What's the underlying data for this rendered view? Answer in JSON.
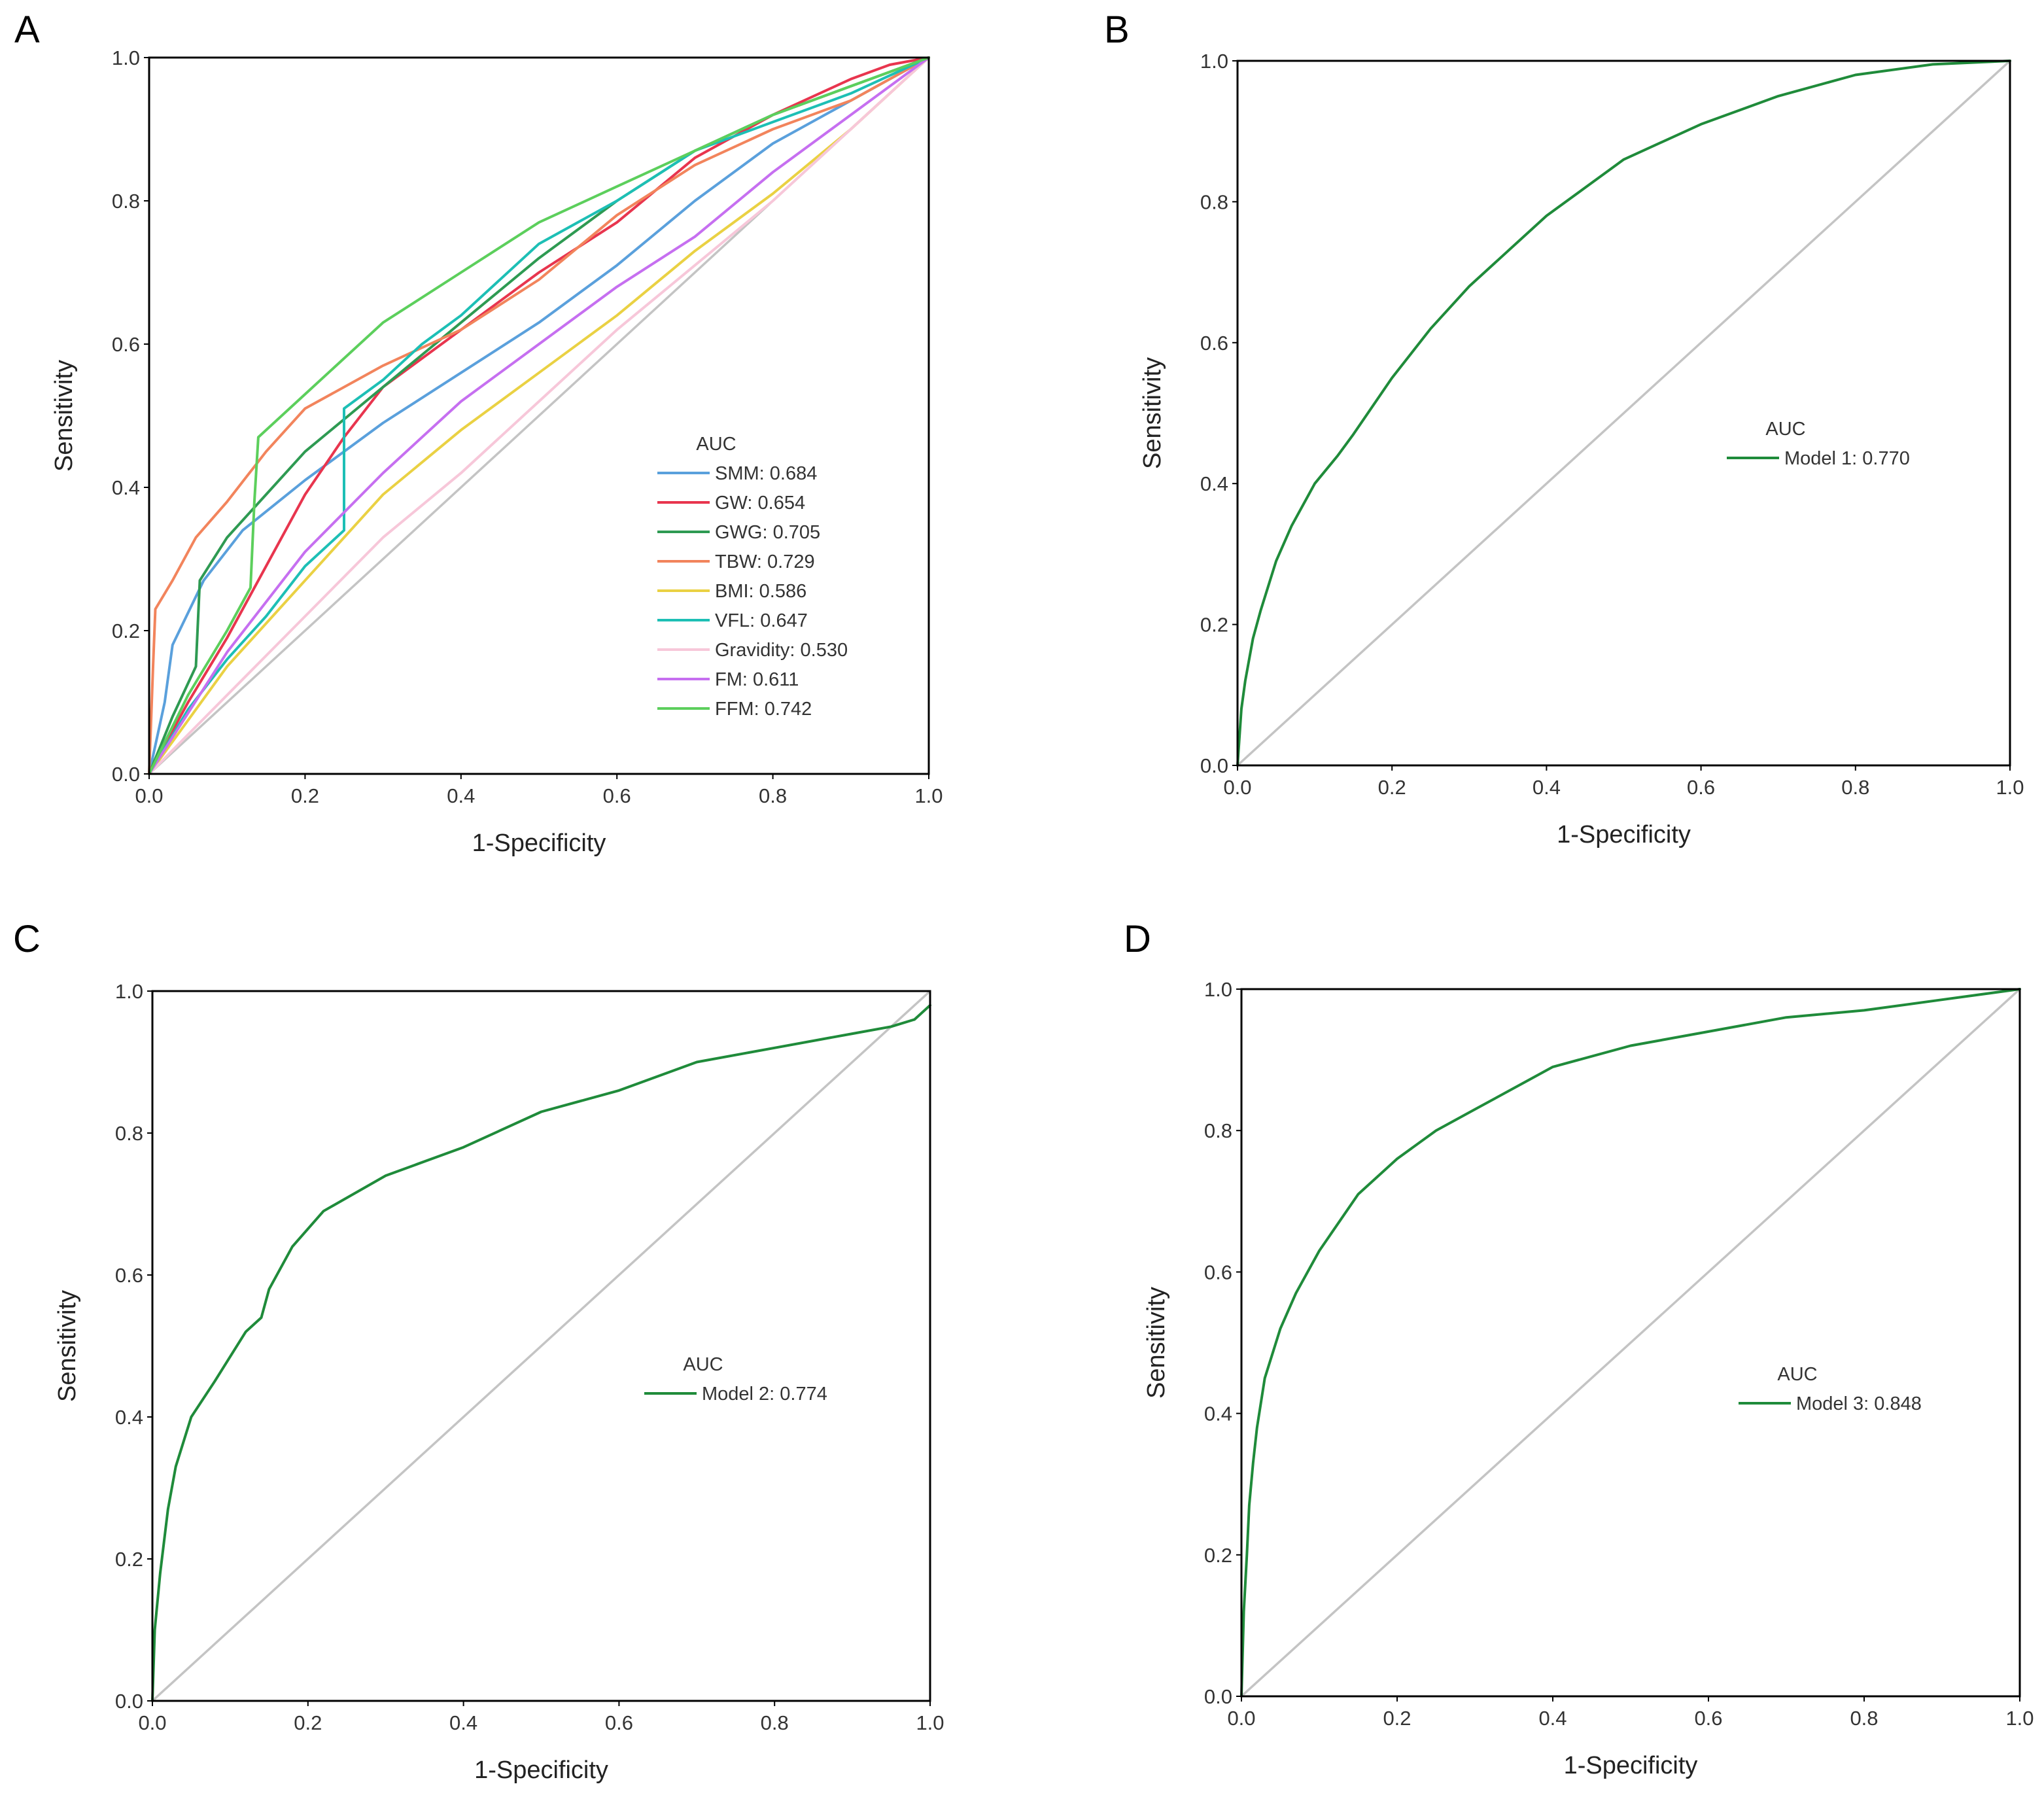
{
  "chart_data": [
    {
      "panel": "A",
      "type": "line",
      "title": "",
      "xlabel": "1-Specificity",
      "ylabel": "Sensitivity",
      "xlim": [
        0,
        1
      ],
      "ylim": [
        0,
        1
      ],
      "xticks": [
        "0.0",
        "0.2",
        "0.4",
        "0.6",
        "0.8",
        "1.0"
      ],
      "yticks": [
        "0.0",
        "0.2",
        "0.4",
        "0.6",
        "0.8",
        "1.0"
      ],
      "legend_title": "AUC",
      "legend_position": "bottom-right",
      "reference_line": true,
      "reference_color": "#bdbdbd",
      "series": [
        {
          "name": "SMM: 0.684",
          "color": "#5aa0dc",
          "x": [
            0,
            0.01,
            0.02,
            0.03,
            0.07,
            0.12,
            0.2,
            0.3,
            0.4,
            0.5,
            0.6,
            0.7,
            0.8,
            0.9,
            1.0
          ],
          "y": [
            0,
            0.05,
            0.1,
            0.18,
            0.27,
            0.34,
            0.41,
            0.49,
            0.56,
            0.63,
            0.71,
            0.8,
            0.88,
            0.94,
            1.0
          ]
        },
        {
          "name": "GW: 0.654",
          "color": "#e8354e",
          "x": [
            0,
            0.05,
            0.1,
            0.15,
            0.2,
            0.25,
            0.3,
            0.4,
            0.5,
            0.6,
            0.7,
            0.8,
            0.9,
            0.95,
            1.0
          ],
          "y": [
            0,
            0.1,
            0.19,
            0.29,
            0.39,
            0.47,
            0.54,
            0.62,
            0.7,
            0.77,
            0.86,
            0.92,
            0.97,
            0.99,
            1.0
          ]
        },
        {
          "name": "GWG: 0.705",
          "color": "#2e9a52",
          "x": [
            0,
            0.03,
            0.06,
            0.065,
            0.1,
            0.15,
            0.2,
            0.3,
            0.4,
            0.5,
            0.6,
            0.7,
            0.8,
            0.9,
            1.0
          ],
          "y": [
            0,
            0.08,
            0.15,
            0.27,
            0.33,
            0.39,
            0.45,
            0.54,
            0.63,
            0.72,
            0.8,
            0.87,
            0.92,
            0.96,
            1.0
          ]
        },
        {
          "name": "TBW: 0.729",
          "color": "#f2845c",
          "x": [
            0,
            0.005,
            0.008,
            0.03,
            0.06,
            0.1,
            0.15,
            0.2,
            0.3,
            0.4,
            0.5,
            0.6,
            0.7,
            0.8,
            0.9,
            1.0
          ],
          "y": [
            0,
            0.15,
            0.23,
            0.27,
            0.33,
            0.38,
            0.45,
            0.51,
            0.57,
            0.62,
            0.69,
            0.78,
            0.85,
            0.9,
            0.94,
            1.0
          ]
        },
        {
          "name": "BMI: 0.586",
          "color": "#ead143",
          "x": [
            0,
            0.1,
            0.2,
            0.3,
            0.4,
            0.5,
            0.6,
            0.7,
            0.8,
            0.9,
            1.0
          ],
          "y": [
            0,
            0.15,
            0.27,
            0.39,
            0.48,
            0.56,
            0.64,
            0.73,
            0.81,
            0.9,
            1.0
          ]
        },
        {
          "name": "VFL: 0.647",
          "color": "#1dbfb5",
          "x": [
            0,
            0.05,
            0.1,
            0.15,
            0.2,
            0.25,
            0.25,
            0.3,
            0.35,
            0.4,
            0.5,
            0.6,
            0.7,
            0.8,
            0.9,
            1.0
          ],
          "y": [
            0,
            0.09,
            0.16,
            0.22,
            0.29,
            0.34,
            0.51,
            0.55,
            0.6,
            0.64,
            0.74,
            0.8,
            0.87,
            0.91,
            0.95,
            1.0
          ]
        },
        {
          "name": "Gravidity: 0.530",
          "color": "#f7c7d9",
          "x": [
            0,
            0.2,
            0.3,
            0.4,
            0.5,
            0.6,
            0.7,
            0.8,
            0.9,
            1.0
          ],
          "y": [
            0,
            0.22,
            0.33,
            0.42,
            0.52,
            0.62,
            0.71,
            0.8,
            0.9,
            1.0
          ]
        },
        {
          "name": "FM: 0.611",
          "color": "#c66ff0",
          "x": [
            0,
            0.1,
            0.2,
            0.3,
            0.4,
            0.5,
            0.6,
            0.7,
            0.8,
            0.9,
            1.0
          ],
          "y": [
            0,
            0.17,
            0.31,
            0.42,
            0.52,
            0.6,
            0.68,
            0.75,
            0.84,
            0.92,
            1.0
          ]
        },
        {
          "name": "FFM: 0.742",
          "color": "#5ccf5c",
          "x": [
            0,
            0.05,
            0.1,
            0.13,
            0.135,
            0.14,
            0.2,
            0.3,
            0.4,
            0.5,
            0.6,
            0.7,
            0.8,
            0.9,
            1.0
          ],
          "y": [
            0,
            0.11,
            0.2,
            0.26,
            0.38,
            0.47,
            0.53,
            0.63,
            0.7,
            0.77,
            0.82,
            0.87,
            0.92,
            0.96,
            1.0
          ]
        }
      ]
    },
    {
      "panel": "B",
      "type": "line",
      "title": "",
      "xlabel": "1-Specificity",
      "ylabel": "Sensitivity",
      "xlim": [
        0,
        1
      ],
      "ylim": [
        0,
        1
      ],
      "xticks": [
        "0.0",
        "0.2",
        "0.4",
        "0.6",
        "0.8",
        "1.0"
      ],
      "yticks": [
        "0.0",
        "0.2",
        "0.4",
        "0.6",
        "0.8",
        "1.0"
      ],
      "legend_title": "AUC",
      "legend_position": "center-right",
      "reference_line": true,
      "reference_color": "#c4c4c4",
      "series": [
        {
          "name": "Model 1: 0.770",
          "color": "#1f8b3a",
          "x": [
            0,
            0.005,
            0.01,
            0.02,
            0.03,
            0.05,
            0.07,
            0.1,
            0.13,
            0.15,
            0.2,
            0.25,
            0.3,
            0.35,
            0.4,
            0.45,
            0.5,
            0.6,
            0.7,
            0.8,
            0.9,
            1.0
          ],
          "y": [
            0,
            0.08,
            0.12,
            0.18,
            0.22,
            0.29,
            0.34,
            0.4,
            0.44,
            0.47,
            0.55,
            0.62,
            0.68,
            0.73,
            0.78,
            0.82,
            0.86,
            0.91,
            0.95,
            0.98,
            0.995,
            1.0
          ]
        }
      ]
    },
    {
      "panel": "C",
      "type": "line",
      "title": "",
      "xlabel": "1-Specificity",
      "ylabel": "Sensitivity",
      "xlim": [
        0,
        1
      ],
      "ylim": [
        0,
        1
      ],
      "xticks": [
        "0.0",
        "0.2",
        "0.4",
        "0.6",
        "0.8",
        "1.0"
      ],
      "yticks": [
        "0.0",
        "0.2",
        "0.4",
        "0.6",
        "0.8",
        "1.0"
      ],
      "legend_title": "AUC",
      "legend_position": "center-right",
      "reference_line": true,
      "reference_color": "#c4c4c4",
      "series": [
        {
          "name": "Model 2: 0.774",
          "color": "#1f8b3a",
          "x": [
            0,
            0.003,
            0.01,
            0.02,
            0.03,
            0.05,
            0.08,
            0.12,
            0.14,
            0.15,
            0.18,
            0.22,
            0.3,
            0.4,
            0.5,
            0.6,
            0.7,
            0.8,
            0.9,
            0.95,
            0.98,
            1.0
          ],
          "y": [
            0,
            0.1,
            0.18,
            0.27,
            0.33,
            0.4,
            0.45,
            0.52,
            0.54,
            0.58,
            0.64,
            0.69,
            0.74,
            0.78,
            0.83,
            0.86,
            0.9,
            0.92,
            0.94,
            0.95,
            0.96,
            0.98
          ]
        }
      ]
    },
    {
      "panel": "D",
      "type": "line",
      "title": "",
      "xlabel": "1-Specificity",
      "ylabel": "Sensitivity",
      "xlim": [
        0,
        1
      ],
      "ylim": [
        0,
        1
      ],
      "xticks": [
        "0.0",
        "0.2",
        "0.4",
        "0.6",
        "0.8",
        "1.0"
      ],
      "yticks": [
        "0.0",
        "0.2",
        "0.4",
        "0.6",
        "0.8",
        "1.0"
      ],
      "legend_title": "AUC",
      "legend_position": "center-right",
      "reference_line": true,
      "reference_color": "#c4c4c4",
      "series": [
        {
          "name": "Model 3: 0.848",
          "color": "#1f8b3a",
          "x": [
            0,
            0.003,
            0.007,
            0.01,
            0.015,
            0.02,
            0.03,
            0.05,
            0.07,
            0.1,
            0.15,
            0.2,
            0.25,
            0.3,
            0.4,
            0.5,
            0.6,
            0.7,
            0.8,
            0.9,
            1.0
          ],
          "y": [
            0,
            0.12,
            0.2,
            0.27,
            0.33,
            0.38,
            0.45,
            0.52,
            0.57,
            0.63,
            0.71,
            0.76,
            0.8,
            0.83,
            0.89,
            0.92,
            0.94,
            0.96,
            0.97,
            0.985,
            1.0
          ]
        }
      ]
    }
  ],
  "panels": {
    "A": {
      "label": "A"
    },
    "B": {
      "label": "B"
    },
    "C": {
      "label": "C"
    },
    "D": {
      "label": "D"
    }
  }
}
